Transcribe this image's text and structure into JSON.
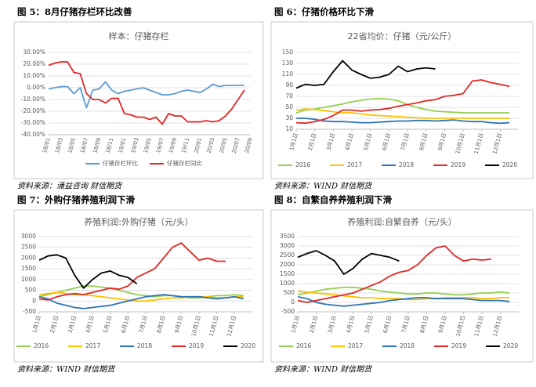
{
  "chart_data": [
    {
      "type": "line",
      "heading": "图 5：8月仔猪存栏环比改善",
      "title": "样本：仔猪存栏",
      "source": "资料来源：涌益咨询 财信期货",
      "categories": [
        "18/01",
        null,
        "18/03",
        null,
        "18/05",
        null,
        "18/07",
        null,
        "18/09",
        null,
        "18/11",
        null,
        "19/01",
        null,
        "19/03",
        null,
        "19/05",
        null,
        "19/07",
        null,
        "19/09",
        null,
        "19/11",
        null,
        "20/01",
        null,
        "20/03",
        null,
        "20/05",
        null,
        "20/07",
        null,
        "20/09"
      ],
      "ylim": [
        -40,
        30
      ],
      "yticks": [
        {
          "value": -40,
          "label": "-40.00%"
        },
        {
          "value": -30,
          "label": "-30.00%"
        },
        {
          "value": -20,
          "label": "-20.00%"
        },
        {
          "value": -10,
          "label": "-10.00%"
        },
        {
          "value": 0,
          "label": "0.00%"
        },
        {
          "value": 10,
          "label": "10.00%"
        },
        {
          "value": 20,
          "label": "20.00%"
        },
        {
          "value": 30,
          "label": "30.00%"
        }
      ],
      "grid": true,
      "series": [
        {
          "name": "仔猪存栏环比",
          "color": "#5b9bd5",
          "values": [
            -1,
            0,
            1,
            1,
            -5,
            0,
            -17,
            -2,
            -1,
            5,
            -2,
            -5,
            -3,
            -2,
            -1,
            0,
            -2,
            -4,
            -6,
            -6,
            -5,
            -3,
            -2,
            -3,
            -4,
            -1,
            3,
            1,
            2,
            2,
            2,
            2,
            null
          ]
        },
        {
          "name": "仔猪存栏同比",
          "color": "#e32626",
          "values": [
            19,
            21,
            22,
            22,
            13,
            12,
            -5,
            -10,
            -10,
            -13,
            -9,
            -9,
            -22,
            -23,
            -25,
            -25,
            -27,
            -25,
            -31,
            -22,
            -24,
            -24,
            -29,
            -29,
            -29,
            -28,
            -29,
            -28,
            -24,
            -18,
            -10,
            -2,
            null
          ]
        }
      ]
    },
    {
      "type": "line",
      "heading": "图 6：仔猪价格环比下滑",
      "title": "22省均价：仔猪（元/公斤）",
      "source": "资料来源：WIND 财信期货",
      "x": [
        1,
        1.5,
        2,
        2.5,
        3,
        3.5,
        4,
        4.5,
        5,
        5.5,
        6,
        6.5,
        7,
        7.5,
        8,
        8.5,
        9,
        9.5,
        10,
        10.5,
        11,
        11.5,
        12,
        12.5
      ],
      "xlim": [
        1,
        13
      ],
      "xticks": [
        {
          "value": 1,
          "label": "1月1日"
        },
        {
          "value": 2,
          "label": "2月1日"
        },
        {
          "value": 3,
          "label": "3月1日"
        },
        {
          "value": 4,
          "label": "4月1日"
        },
        {
          "value": 5,
          "label": "5月1日"
        },
        {
          "value": 6,
          "label": "6月1日"
        },
        {
          "value": 7,
          "label": "7月1日"
        },
        {
          "value": 8,
          "label": "8月1日"
        },
        {
          "value": 9,
          "label": "9月1日"
        },
        {
          "value": 10,
          "label": "10月1日"
        },
        {
          "value": 11,
          "label": "11月1日"
        },
        {
          "value": 12,
          "label": "12月1日"
        }
      ],
      "ylim": [
        10,
        150
      ],
      "yticks": [
        10,
        30,
        50,
        70,
        90,
        110,
        130,
        150
      ],
      "grid": true,
      "series": [
        {
          "name": "2016",
          "color": "#92d050",
          "values": [
            40,
            45,
            47,
            50,
            53,
            56,
            60,
            63,
            65,
            66,
            65,
            62,
            55,
            50,
            46,
            43,
            42,
            41,
            40,
            40,
            40,
            40,
            40,
            40
          ]
        },
        {
          "name": "2017",
          "color": "#ffc000",
          "values": [
            45,
            47,
            46,
            44,
            42,
            40,
            40,
            38,
            36,
            35,
            34,
            33,
            32,
            31,
            30,
            30,
            30,
            30,
            30,
            30,
            30,
            30,
            30,
            30
          ]
        },
        {
          "name": "2018",
          "color": "#2e75b6",
          "values": [
            30,
            30,
            28,
            25,
            24,
            24,
            23,
            22,
            22,
            23,
            24,
            25,
            25,
            26,
            26,
            25,
            26,
            27,
            25,
            24,
            24,
            22,
            21,
            22
          ]
        },
        {
          "name": "2019",
          "color": "#e32626",
          "values": [
            22,
            21,
            24,
            28,
            35,
            45,
            45,
            43,
            45,
            46,
            48,
            52,
            55,
            58,
            62,
            64,
            70,
            72,
            75,
            98,
            100,
            95,
            92,
            88
          ]
        },
        {
          "name": "2020",
          "color": "#000000",
          "values": [
            85,
            92,
            90,
            92,
            115,
            135,
            118,
            110,
            103,
            105,
            110,
            125,
            115,
            120,
            122,
            120,
            null,
            null,
            null,
            null,
            null,
            null,
            null,
            null
          ]
        }
      ]
    },
    {
      "type": "line",
      "heading": "图 7：外购仔猪养殖利润下滑",
      "title": "养殖利润:外购仔猪（元/头）",
      "source": "资料来源：WIND 财信期货",
      "x": [
        1,
        1.5,
        2,
        2.5,
        3,
        3.5,
        4,
        4.5,
        5,
        5.5,
        6,
        6.5,
        7,
        7.5,
        8,
        8.5,
        9,
        9.5,
        10,
        10.5,
        11,
        11.5,
        12,
        12.5
      ],
      "xlim": [
        1,
        13
      ],
      "xticks": [
        {
          "value": 1,
          "label": "1月1日"
        },
        {
          "value": 2,
          "label": "2月1日"
        },
        {
          "value": 3,
          "label": "3月1日"
        },
        {
          "value": 4,
          "label": "4月1日"
        },
        {
          "value": 5,
          "label": "5月1日"
        },
        {
          "value": 6,
          "label": "6月1日"
        },
        {
          "value": 7,
          "label": "7月1日"
        },
        {
          "value": 8,
          "label": "8月1日"
        },
        {
          "value": 9,
          "label": "9月1日"
        },
        {
          "value": 10,
          "label": "10月1日"
        },
        {
          "value": 11,
          "label": "11月1日"
        },
        {
          "value": 12,
          "label": "12月1日"
        }
      ],
      "ylim": [
        -500,
        3000
      ],
      "yticks": [
        -500,
        0,
        500,
        1000,
        1500,
        2000,
        2500,
        3000
      ],
      "grid": true,
      "series": [
        {
          "name": "2016",
          "color": "#92d050",
          "values": [
            200,
            300,
            400,
            500,
            600,
            700,
            700,
            650,
            600,
            500,
            400,
            300,
            250,
            200,
            250,
            250,
            200,
            150,
            150,
            200,
            250,
            250,
            300,
            250
          ]
        },
        {
          "name": "2017",
          "color": "#ffc000",
          "values": [
            300,
            350,
            400,
            350,
            300,
            300,
            250,
            200,
            150,
            100,
            50,
            0,
            0,
            50,
            100,
            150,
            150,
            200,
            200,
            200,
            150,
            150,
            200,
            200
          ]
        },
        {
          "name": "2018",
          "color": "#2e75b6",
          "values": [
            200,
            100,
            -100,
            -200,
            -300,
            -350,
            -300,
            -250,
            -200,
            -100,
            0,
            100,
            200,
            250,
            300,
            250,
            200,
            200,
            200,
            150,
            100,
            150,
            200,
            100
          ]
        },
        {
          "name": "2019",
          "color": "#e32626",
          "values": [
            100,
            50,
            200,
            300,
            350,
            300,
            400,
            500,
            600,
            550,
            700,
            1100,
            1300,
            1500,
            2000,
            2500,
            2700,
            2300,
            1900,
            2000,
            1850,
            1850,
            null,
            null
          ]
        },
        {
          "name": "2020",
          "color": "#000000",
          "values": [
            1900,
            2100,
            2150,
            2000,
            1200,
            600,
            1000,
            1300,
            1400,
            1200,
            1100,
            800,
            null,
            null,
            null,
            null,
            null,
            null,
            null,
            null,
            null,
            null,
            null,
            null
          ]
        }
      ]
    },
    {
      "type": "line",
      "heading": "图 8：自繁自养养殖利润下滑",
      "title": "养殖利润:自繁自养（元/头）",
      "source": "资料来源：WIND 财信期货",
      "x": [
        1,
        1.5,
        2,
        2.5,
        3,
        3.5,
        4,
        4.5,
        5,
        5.5,
        6,
        6.5,
        7,
        7.5,
        8,
        8.5,
        9,
        9.5,
        10,
        10.5,
        11,
        11.5,
        12,
        12.5
      ],
      "xlim": [
        1,
        13
      ],
      "xticks": [
        {
          "value": 1,
          "label": "1月1日"
        },
        {
          "value": 2,
          "label": "2月1日"
        },
        {
          "value": 3,
          "label": "3月1日"
        },
        {
          "value": 4,
          "label": "4月1日"
        },
        {
          "value": 5,
          "label": "5月1日"
        },
        {
          "value": 6,
          "label": "6月1日"
        },
        {
          "value": 7,
          "label": "7月1日"
        },
        {
          "value": 8,
          "label": "8月1日"
        },
        {
          "value": 9,
          "label": "9月1日"
        },
        {
          "value": 10,
          "label": "10月1日"
        },
        {
          "value": 11,
          "label": "11月1日"
        },
        {
          "value": 12,
          "label": "12月1日"
        }
      ],
      "ylim": [
        -500,
        3500
      ],
      "yticks": [
        -500,
        0,
        500,
        1000,
        1500,
        2000,
        2500,
        3000,
        3500
      ],
      "grid": true,
      "series": [
        {
          "name": "2016",
          "color": "#92d050",
          "values": [
            400,
            500,
            600,
            700,
            750,
            800,
            800,
            750,
            700,
            600,
            550,
            500,
            450,
            450,
            500,
            500,
            450,
            400,
            400,
            450,
            500,
            500,
            550,
            500
          ]
        },
        {
          "name": "2017",
          "color": "#ffc000",
          "values": [
            600,
            550,
            500,
            450,
            400,
            350,
            300,
            250,
            250,
            200,
            200,
            200,
            150,
            150,
            200,
            200,
            250,
            250,
            250,
            250,
            200,
            200,
            250,
            250
          ]
        },
        {
          "name": "2018",
          "color": "#2e75b6",
          "values": [
            300,
            200,
            0,
            -100,
            -150,
            -200,
            -150,
            -100,
            -50,
            0,
            100,
            150,
            200,
            250,
            250,
            200,
            200,
            200,
            200,
            150,
            100,
            100,
            100,
            50
          ]
        },
        {
          "name": "2019",
          "color": "#e32626",
          "values": [
            100,
            0,
            100,
            200,
            300,
            400,
            500,
            700,
            900,
            1100,
            1400,
            1600,
            1700,
            2000,
            2500,
            2900,
            3000,
            2500,
            2200,
            2300,
            2250,
            2300,
            null,
            null
          ]
        },
        {
          "name": "2020",
          "color": "#000000",
          "values": [
            2400,
            2600,
            2750,
            2500,
            2200,
            1500,
            1800,
            2300,
            2600,
            2500,
            2400,
            2200,
            null,
            null,
            null,
            null,
            null,
            null,
            null,
            null,
            null,
            null,
            null,
            null
          ]
        }
      ]
    }
  ]
}
